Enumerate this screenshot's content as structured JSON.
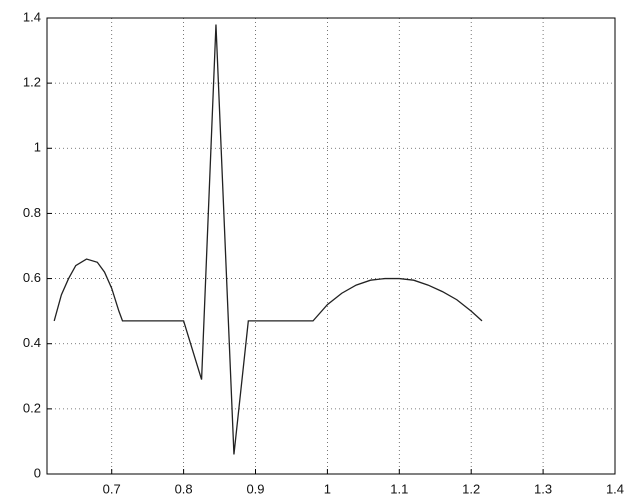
{
  "chart_data": {
    "type": "line",
    "x": [
      0.62,
      0.63,
      0.64,
      0.65,
      0.665,
      0.68,
      0.69,
      0.7,
      0.71,
      0.715,
      0.8,
      0.825,
      0.845,
      0.87,
      0.89,
      0.98,
      1.0,
      1.02,
      1.04,
      1.06,
      1.08,
      1.1,
      1.12,
      1.14,
      1.16,
      1.18,
      1.2,
      1.215
    ],
    "series": [
      {
        "color": "#222222",
        "values": [
          0.47,
          0.55,
          0.6,
          0.64,
          0.66,
          0.65,
          0.62,
          0.57,
          0.5,
          0.47,
          0.47,
          0.29,
          1.38,
          0.06,
          0.47,
          0.47,
          0.52,
          0.555,
          0.58,
          0.595,
          0.6,
          0.6,
          0.595,
          0.58,
          0.56,
          0.535,
          0.5,
          0.47
        ]
      }
    ],
    "xlim": [
      0.61,
      1.4
    ],
    "xticks": [
      0.7,
      0.8,
      0.9,
      1,
      1.1,
      1.2,
      1.3,
      1.4
    ],
    "ylim": [
      0,
      1.4
    ],
    "yticks": [
      0,
      0.2,
      0.4,
      0.6,
      0.8,
      1,
      1.2,
      1.4
    ],
    "grid": true
  }
}
